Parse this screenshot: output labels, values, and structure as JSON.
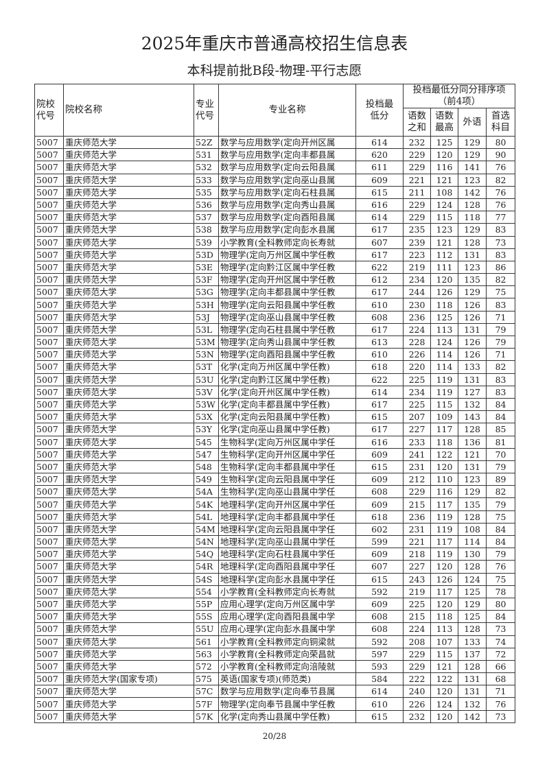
{
  "title": "2025年重庆市普通高校招生信息表",
  "subtitle": "本科提前批B段-物理-平行志愿",
  "headers": {
    "school_code": "院校代号",
    "school_name": "院校名称",
    "major_code": "专业代号",
    "major_name": "专业名称",
    "min_score": "投档最低分",
    "tiebreak_group": "投档最低分同分排序项（前4项）",
    "tb1": "语数之和",
    "tb2": "语数最高",
    "tb3": "外语",
    "tb4": "首选科目"
  },
  "rows": [
    [
      "5007",
      "重庆师范大学",
      "52Z",
      "数学与应用数学(定向开州区属",
      "614",
      "232",
      "125",
      "129",
      "80"
    ],
    [
      "5007",
      "重庆师范大学",
      "531",
      "数学与应用数学(定向丰都县属",
      "620",
      "229",
      "120",
      "129",
      "90"
    ],
    [
      "5007",
      "重庆师范大学",
      "532",
      "数学与应用数学(定向云阳县属",
      "611",
      "229",
      "116",
      "141",
      "76"
    ],
    [
      "5007",
      "重庆师范大学",
      "533",
      "数学与应用数学(定向巫山县属",
      "609",
      "221",
      "121",
      "123",
      "82"
    ],
    [
      "5007",
      "重庆师范大学",
      "535",
      "数学与应用数学(定向石柱县属",
      "615",
      "211",
      "108",
      "142",
      "76"
    ],
    [
      "5007",
      "重庆师范大学",
      "536",
      "数学与应用数学(定向秀山县属",
      "616",
      "229",
      "124",
      "128",
      "76"
    ],
    [
      "5007",
      "重庆师范大学",
      "537",
      "数学与应用数学(定向酉阳县属",
      "614",
      "229",
      "115",
      "118",
      "77"
    ],
    [
      "5007",
      "重庆师范大学",
      "538",
      "数学与应用数学(定向彭水县属",
      "617",
      "235",
      "123",
      "129",
      "83"
    ],
    [
      "5007",
      "重庆师范大学",
      "539",
      "小学教育(全科教师定向长寿就",
      "607",
      "239",
      "121",
      "128",
      "73"
    ],
    [
      "5007",
      "重庆师范大学",
      "53D",
      "物理学(定向万州区属中学任教",
      "617",
      "223",
      "112",
      "131",
      "83"
    ],
    [
      "5007",
      "重庆师范大学",
      "53E",
      "物理学(定向黔江区属中学任教",
      "622",
      "219",
      "111",
      "123",
      "86"
    ],
    [
      "5007",
      "重庆师范大学",
      "53F",
      "物理学(定向开州区属中学任教",
      "612",
      "234",
      "120",
      "135",
      "82"
    ],
    [
      "5007",
      "重庆师范大学",
      "53G",
      "物理学(定向丰都县属中学任教",
      "617",
      "244",
      "126",
      "129",
      "75"
    ],
    [
      "5007",
      "重庆师范大学",
      "53H",
      "物理学(定向云阳县属中学任教",
      "610",
      "230",
      "118",
      "126",
      "83"
    ],
    [
      "5007",
      "重庆师范大学",
      "53J",
      "物理学(定向巫山县属中学任教",
      "608",
      "236",
      "125",
      "126",
      "71"
    ],
    [
      "5007",
      "重庆师范大学",
      "53L",
      "物理学(定向石柱县属中学任教",
      "617",
      "224",
      "113",
      "131",
      "79"
    ],
    [
      "5007",
      "重庆师范大学",
      "53M",
      "物理学(定向秀山县属中学任教",
      "613",
      "228",
      "124",
      "126",
      "79"
    ],
    [
      "5007",
      "重庆师范大学",
      "53N",
      "物理学(定向酉阳县属中学任教",
      "610",
      "226",
      "114",
      "126",
      "71"
    ],
    [
      "5007",
      "重庆师范大学",
      "53T",
      "化学(定向万州区属中学任教)",
      "618",
      "220",
      "114",
      "133",
      "82"
    ],
    [
      "5007",
      "重庆师范大学",
      "53U",
      "化学(定向黔江区属中学任教)",
      "622",
      "225",
      "119",
      "131",
      "83"
    ],
    [
      "5007",
      "重庆师范大学",
      "53V",
      "化学(定向开州区属中学任教)",
      "614",
      "234",
      "119",
      "127",
      "83"
    ],
    [
      "5007",
      "重庆师范大学",
      "53W",
      "化学(定向丰都县属中学任教)",
      "617",
      "225",
      "115",
      "132",
      "84"
    ],
    [
      "5007",
      "重庆师范大学",
      "53X",
      "化学(定向云阳县属中学任教)",
      "615",
      "207",
      "109",
      "143",
      "84"
    ],
    [
      "5007",
      "重庆师范大学",
      "53Y",
      "化学(定向巫山县属中学任教)",
      "617",
      "227",
      "117",
      "128",
      "85"
    ],
    [
      "5007",
      "重庆师范大学",
      "545",
      "生物科学(定向万州区属中学任",
      "616",
      "233",
      "118",
      "136",
      "81"
    ],
    [
      "5007",
      "重庆师范大学",
      "547",
      "生物科学(定向开州区属中学任",
      "609",
      "241",
      "122",
      "121",
      "70"
    ],
    [
      "5007",
      "重庆师范大学",
      "548",
      "生物科学(定向丰都县属中学任",
      "615",
      "231",
      "120",
      "131",
      "79"
    ],
    [
      "5007",
      "重庆师范大学",
      "549",
      "生物科学(定向云阳县属中学任",
      "609",
      "212",
      "110",
      "123",
      "89"
    ],
    [
      "5007",
      "重庆师范大学",
      "54A",
      "生物科学(定向巫山县属中学任",
      "608",
      "229",
      "116",
      "129",
      "82"
    ],
    [
      "5007",
      "重庆师范大学",
      "54K",
      "地理科学(定向开州区属中学任",
      "609",
      "215",
      "117",
      "135",
      "79"
    ],
    [
      "5007",
      "重庆师范大学",
      "54L",
      "地理科学(定向丰都县属中学任",
      "618",
      "236",
      "119",
      "128",
      "75"
    ],
    [
      "5007",
      "重庆师范大学",
      "54M",
      "地理科学(定向云阳县属中学任",
      "602",
      "231",
      "119",
      "108",
      "84"
    ],
    [
      "5007",
      "重庆师范大学",
      "54N",
      "地理科学(定向巫山县属中学任",
      "599",
      "221",
      "117",
      "114",
      "84"
    ],
    [
      "5007",
      "重庆师范大学",
      "54Q",
      "地理科学(定向石柱县属中学任",
      "609",
      "218",
      "119",
      "130",
      "79"
    ],
    [
      "5007",
      "重庆师范大学",
      "54R",
      "地理科学(定向酉阳县属中学任",
      "607",
      "227",
      "120",
      "128",
      "76"
    ],
    [
      "5007",
      "重庆师范大学",
      "54S",
      "地理科学(定向彭水县属中学任",
      "615",
      "243",
      "126",
      "124",
      "75"
    ],
    [
      "5007",
      "重庆师范大学",
      "554",
      "小学教育(全科教师定向长寿就",
      "592",
      "219",
      "117",
      "125",
      "78"
    ],
    [
      "5007",
      "重庆师范大学",
      "55P",
      "应用心理学(定向万州区属中学",
      "609",
      "225",
      "120",
      "129",
      "80"
    ],
    [
      "5007",
      "重庆师范大学",
      "55S",
      "应用心理学(定向酉阳县属中学",
      "608",
      "215",
      "118",
      "125",
      "84"
    ],
    [
      "5007",
      "重庆师范大学",
      "55U",
      "应用心理学(定向彭水县属中学",
      "608",
      "224",
      "113",
      "128",
      "73"
    ],
    [
      "5007",
      "重庆师范大学",
      "561",
      "小学教育(全科教师定向铜梁就",
      "592",
      "208",
      "107",
      "133",
      "74"
    ],
    [
      "5007",
      "重庆师范大学",
      "563",
      "小学教育(全科教师定向荣昌就",
      "597",
      "229",
      "115",
      "137",
      "72"
    ],
    [
      "5007",
      "重庆师范大学",
      "572",
      "小学教育(全科教师定向涪陵就",
      "593",
      "229",
      "121",
      "128",
      "66"
    ],
    [
      "5007",
      "重庆师范大学(国家专项)",
      "575",
      "英语(国家专项)(师范类)",
      "584",
      "222",
      "122",
      "131",
      "68"
    ],
    [
      "5007",
      "重庆师范大学",
      "57C",
      "数学与应用数学(定向奉节县属",
      "614",
      "240",
      "120",
      "131",
      "71"
    ],
    [
      "5007",
      "重庆师范大学",
      "57F",
      "物理学(定向奉节县属中学任教",
      "610",
      "226",
      "124",
      "132",
      "76"
    ],
    [
      "5007",
      "重庆师范大学",
      "57K",
      "化学(定向秀山县属中学任教)",
      "615",
      "232",
      "120",
      "142",
      "73"
    ]
  ],
  "page_number": "20/28"
}
